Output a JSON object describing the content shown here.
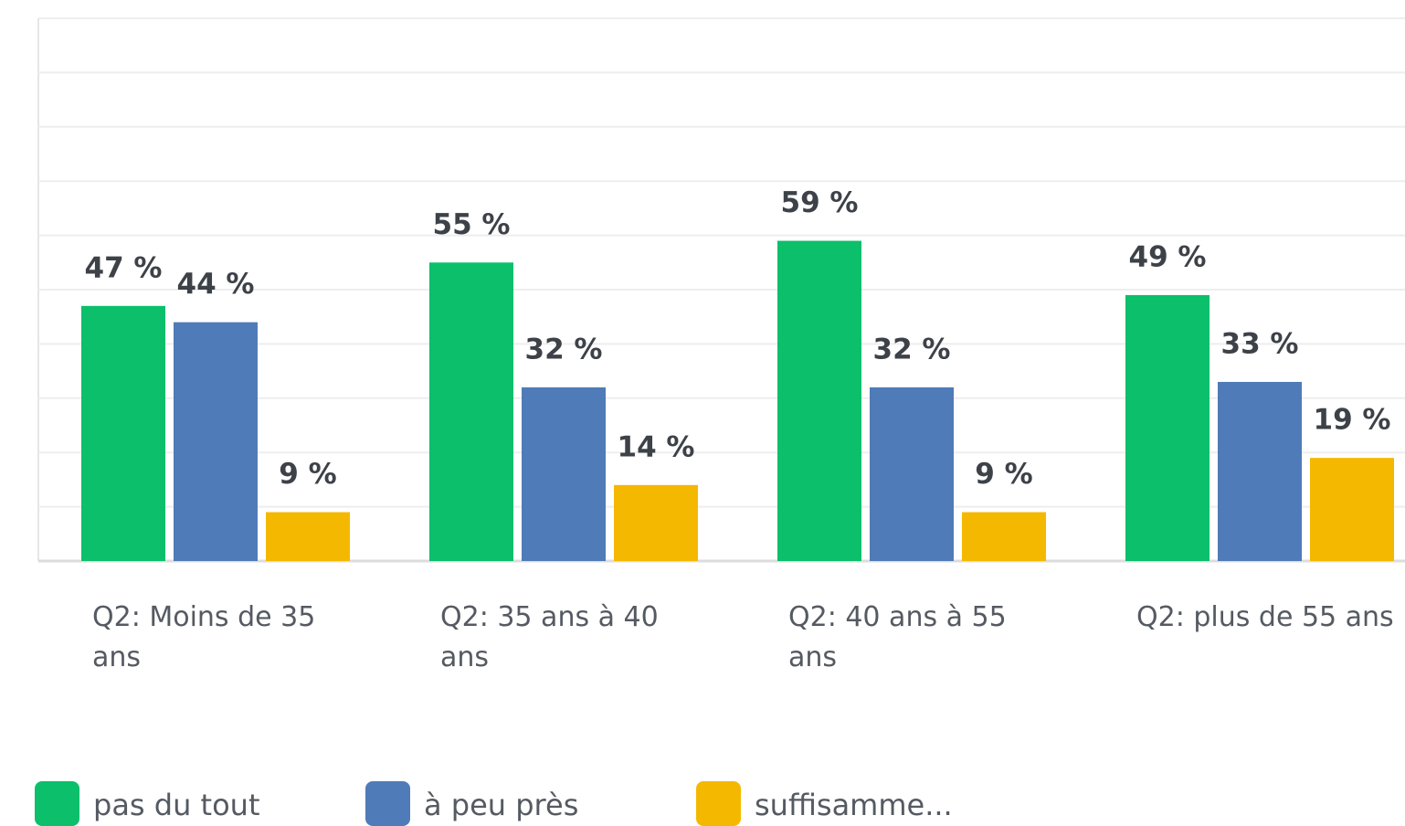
{
  "chart_data": {
    "type": "bar",
    "categories": [
      "Q2: Moins de 35 ans",
      "Q2: 35 ans à 40 ans",
      "Q2: 40 ans à 55 ans",
      "Q2: plus de 55 ans"
    ],
    "series": [
      {
        "name": "pas du tout",
        "color": "#0bbf6b",
        "values": [
          47,
          55,
          59,
          49
        ],
        "value_labels": [
          "47 %",
          "55 %",
          "59 %",
          "49 %"
        ]
      },
      {
        "name": "à peu près",
        "color": "#4f7bb8",
        "values": [
          44,
          32,
          32,
          33
        ],
        "value_labels": [
          "44 %",
          "32 %",
          "32 %",
          "33 %"
        ]
      },
      {
        "name": "suffisamme...",
        "color": "#f5b800",
        "values": [
          9,
          14,
          9,
          19
        ],
        "value_labels": [
          "9 %",
          "14 %",
          "9 %",
          "19 %"
        ]
      }
    ],
    "ylim": [
      0,
      100
    ],
    "yticks": [
      0,
      10,
      20,
      30,
      40,
      50,
      60,
      70,
      80,
      90,
      100
    ],
    "grid": true
  }
}
